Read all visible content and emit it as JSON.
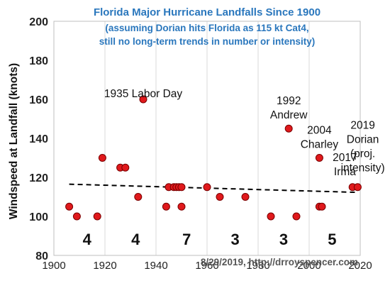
{
  "chart_data": {
    "type": "scatter",
    "title": "Florida Major Hurricane Landfalls Since 1900",
    "subtitle_lines": [
      "(assuming Dorian hits Florida as 115 kt Cat4,",
      "still no long-term trends in number or intensity)"
    ],
    "title_color": "#2a77bd",
    "ylabel": "Windspeed at Landfall (knots)",
    "xlim": [
      1900,
      2020
    ],
    "ylim": [
      80,
      200
    ],
    "x_ticks": [
      1900,
      1920,
      1940,
      1960,
      1980,
      2000,
      2020
    ],
    "y_ticks": [
      80,
      100,
      120,
      140,
      160,
      180,
      200
    ],
    "grid": "vertical",
    "point_color": "#e0191c",
    "points": [
      {
        "x": 1906,
        "y": 105
      },
      {
        "x": 1909,
        "y": 100
      },
      {
        "x": 1917,
        "y": 100
      },
      {
        "x": 1919,
        "y": 130
      },
      {
        "x": 1926,
        "y": 125
      },
      {
        "x": 1928,
        "y": 125
      },
      {
        "x": 1933,
        "y": 110
      },
      {
        "x": 1935,
        "y": 160
      },
      {
        "x": 1944,
        "y": 105
      },
      {
        "x": 1945,
        "y": 115
      },
      {
        "x": 1947,
        "y": 115
      },
      {
        "x": 1948,
        "y": 115
      },
      {
        "x": 1949,
        "y": 115
      },
      {
        "x": 1950,
        "y": 115
      },
      {
        "x": 1950,
        "y": 105
      },
      {
        "x": 1960,
        "y": 115
      },
      {
        "x": 1965,
        "y": 110
      },
      {
        "x": 1975,
        "y": 110
      },
      {
        "x": 1985,
        "y": 100
      },
      {
        "x": 1992,
        "y": 145
      },
      {
        "x": 1995,
        "y": 100
      },
      {
        "x": 2004,
        "y": 130
      },
      {
        "x": 2004,
        "y": 105
      },
      {
        "x": 2005,
        "y": 105
      },
      {
        "x": 2017,
        "y": 115
      },
      {
        "x": 2019,
        "y": 115
      }
    ],
    "trend_line": {
      "x": [
        1906,
        2019
      ],
      "y": [
        116.5,
        112.3
      ]
    },
    "annotations": [
      {
        "lines": [
          "1935 Labor Day"
        ],
        "x": 1935,
        "y": 163
      },
      {
        "lines": [
          "1992",
          "Andrew"
        ],
        "x": 1992,
        "y": 152
      },
      {
        "lines": [
          "2004",
          "Charley"
        ],
        "x": 2004,
        "y": 137
      },
      {
        "lines": [
          "2017",
          "Irma"
        ],
        "x": 2014,
        "y": 123
      },
      {
        "lines": [
          "2019",
          "Dorian",
          "(proj.",
          "intensity)"
        ],
        "x": 2021,
        "y": 125
      }
    ],
    "decade_counts": [
      {
        "label": "4",
        "x": 1913
      },
      {
        "label": "4",
        "x": 1932
      },
      {
        "label": "7",
        "x": 1952
      },
      {
        "label": "3",
        "x": 1971
      },
      {
        "label": "3",
        "x": 1990
      },
      {
        "label": "5",
        "x": 2009
      }
    ],
    "credit": "8/29/2019, http://drroyspencer.com"
  }
}
